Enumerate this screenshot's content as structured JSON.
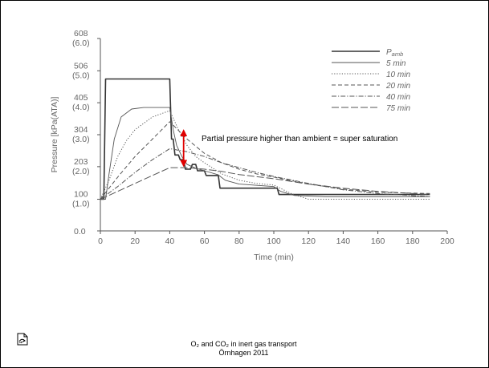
{
  "slide": {
    "caption_line1": "O₂ and CO₂ in inert gas transport",
    "caption_line2": "Örnhagen 2011",
    "icon": "recycle-document-icon"
  },
  "chart_data": {
    "type": "line",
    "title": "",
    "xlabel": "Time (min)",
    "ylabel": "Pressure [kPa(ATA)]",
    "xlim": [
      0,
      200
    ],
    "ylim": [
      0,
      608
    ],
    "x_ticks": [
      "0",
      "20",
      "40",
      "60",
      "80",
      "100",
      "120",
      "140",
      "160",
      "180",
      "200"
    ],
    "y_ticks": [
      {
        "value": 0,
        "kpa": "0.0",
        "ata": ""
      },
      {
        "value": 100,
        "kpa": "100",
        "ata": "(1.0)"
      },
      {
        "value": 203,
        "kpa": "203",
        "ata": "(2.0)"
      },
      {
        "value": 304,
        "kpa": "304",
        "ata": "(3.0)"
      },
      {
        "value": 405,
        "kpa": "405",
        "ata": "(4.0)"
      },
      {
        "value": 506,
        "kpa": "506",
        "ata": "(5.0)"
      },
      {
        "value": 608,
        "kpa": "608",
        "ata": "(6.0)"
      }
    ],
    "legend_position": "top-right",
    "annotation": "Partial pressure higher than ambient = super saturation",
    "annotation_arrow": {
      "x": 48,
      "y_from": 310,
      "y_to": 213,
      "color": "#e00000"
    },
    "series": [
      {
        "name": "P_amb",
        "name_main": "P",
        "name_sub": "amb",
        "style": "solid",
        "color": "#333333",
        "width": 1.6,
        "points": [
          [
            0,
            100
          ],
          [
            2,
            100
          ],
          [
            3,
            480
          ],
          [
            40,
            480
          ],
          [
            41,
            290
          ],
          [
            42,
            290
          ],
          [
            43,
            240
          ],
          [
            45,
            240
          ],
          [
            46,
            225
          ],
          [
            48,
            225
          ],
          [
            49,
            195
          ],
          [
            52,
            195
          ],
          [
            53,
            210
          ],
          [
            55,
            210
          ],
          [
            56,
            190
          ],
          [
            60,
            190
          ],
          [
            61,
            175
          ],
          [
            68,
            175
          ],
          [
            69,
            135
          ],
          [
            102,
            135
          ],
          [
            103,
            115
          ],
          [
            190,
            115
          ]
        ]
      },
      {
        "name": "5 min",
        "style": "solid",
        "color": "#555555",
        "width": 0.9,
        "points": [
          [
            0,
            100
          ],
          [
            3,
            100
          ],
          [
            5,
            180
          ],
          [
            8,
            290
          ],
          [
            12,
            360
          ],
          [
            18,
            385
          ],
          [
            25,
            390
          ],
          [
            40,
            390
          ],
          [
            42,
            320
          ],
          [
            44,
            270
          ],
          [
            47,
            235
          ],
          [
            50,
            210
          ],
          [
            55,
            198
          ],
          [
            60,
            190
          ],
          [
            68,
            177
          ],
          [
            72,
            160
          ],
          [
            80,
            148
          ],
          [
            100,
            140
          ],
          [
            104,
            125
          ],
          [
            112,
            112
          ],
          [
            130,
            108
          ],
          [
            190,
            108
          ]
        ]
      },
      {
        "name": "10 min",
        "style": "dotted",
        "color": "#555555",
        "width": 1,
        "points": [
          [
            0,
            100
          ],
          [
            5,
            160
          ],
          [
            10,
            235
          ],
          [
            15,
            285
          ],
          [
            20,
            320
          ],
          [
            30,
            360
          ],
          [
            40,
            380
          ],
          [
            45,
            320
          ],
          [
            50,
            270
          ],
          [
            55,
            235
          ],
          [
            60,
            215
          ],
          [
            70,
            180
          ],
          [
            80,
            160
          ],
          [
            90,
            150
          ],
          [
            100,
            145
          ],
          [
            110,
            118
          ],
          [
            120,
            100
          ],
          [
            190,
            100
          ]
        ]
      },
      {
        "name": "20 min",
        "style": "dashed",
        "color": "#555555",
        "width": 1,
        "points": [
          [
            0,
            100
          ],
          [
            5,
            135
          ],
          [
            10,
            170
          ],
          [
            20,
            235
          ],
          [
            30,
            290
          ],
          [
            40,
            345
          ],
          [
            50,
            290
          ],
          [
            60,
            245
          ],
          [
            70,
            215
          ],
          [
            80,
            195
          ],
          [
            90,
            180
          ],
          [
            100,
            170
          ],
          [
            120,
            148
          ],
          [
            140,
            132
          ],
          [
            160,
            122
          ],
          [
            190,
            118
          ]
        ]
      },
      {
        "name": "40 min",
        "style": "dashdot",
        "color": "#555555",
        "width": 1,
        "points": [
          [
            0,
            100
          ],
          [
            10,
            140
          ],
          [
            20,
            185
          ],
          [
            30,
            225
          ],
          [
            40,
            260
          ],
          [
            50,
            250
          ],
          [
            60,
            235
          ],
          [
            70,
            215
          ],
          [
            80,
            200
          ],
          [
            90,
            185
          ],
          [
            100,
            172
          ],
          [
            120,
            150
          ],
          [
            140,
            130
          ],
          [
            160,
            118
          ],
          [
            190,
            108
          ]
        ]
      },
      {
        "name": "75 min",
        "style": "longdash",
        "color": "#555555",
        "width": 1,
        "points": [
          [
            0,
            100
          ],
          [
            10,
            125
          ],
          [
            20,
            150
          ],
          [
            30,
            175
          ],
          [
            40,
            200
          ],
          [
            50,
            200
          ],
          [
            60,
            195
          ],
          [
            70,
            188
          ],
          [
            80,
            178
          ],
          [
            100,
            165
          ],
          [
            120,
            148
          ],
          [
            140,
            135
          ],
          [
            160,
            125
          ],
          [
            190,
            115
          ]
        ]
      }
    ]
  }
}
